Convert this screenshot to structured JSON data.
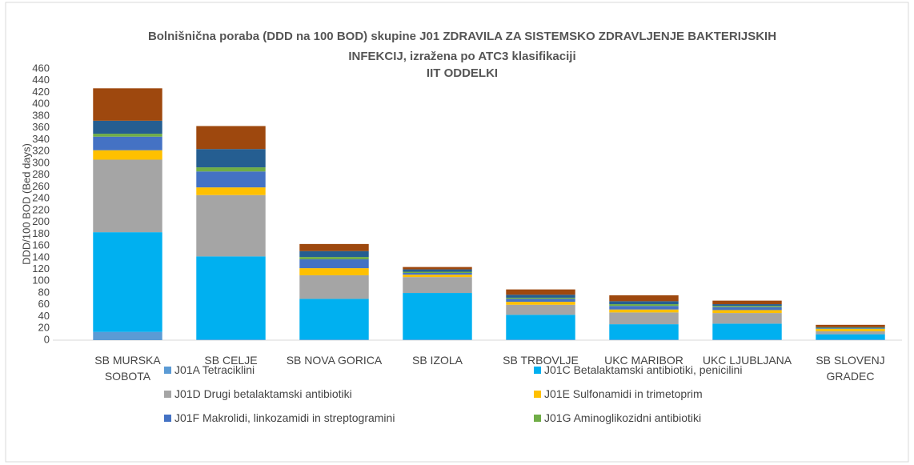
{
  "chart_data": {
    "type": "stacked_bar",
    "title": "Bolnišnična poraba (DDD na 100 BOD) skupine J01 ZDRAVILA ZA SISTEMSKO ZDRAVLJENJE BAKTERIJSKIH INFEKCIJ, izražena po ATC3 klasifikaciji",
    "subtitle": "IIT ODDELKI",
    "y_label": "DDD/100 BOD (Bed days)",
    "categories": [
      "SB MURSKA SOBOTA",
      "SB CELJE",
      "SB NOVA GORICA",
      "SB IZOLA",
      "SB TRBOVLJE",
      "UKC MARIBOR",
      "UKC LJUBLJANA",
      "SB SLOVENJ GRADEC"
    ],
    "series": [
      {
        "name": "J01A Tetraciklini",
        "color": "#5b9bd5",
        "values": [
          14,
          1,
          1,
          1,
          1,
          1,
          1,
          1
        ]
      },
      {
        "name": "J01C Betalaktamski antibiotiki, penicilini",
        "color": "#00b0f0",
        "values": [
          169,
          141,
          69,
          79,
          42,
          26,
          27,
          9
        ]
      },
      {
        "name": "J01D Drugi betalaktamski antibiotiki",
        "color": "#a5a5a5",
        "values": [
          123,
          104,
          40,
          27,
          17,
          20,
          18,
          5
        ]
      },
      {
        "name": "J01E Sulfonamidi in trimetoprim",
        "color": "#ffc000",
        "values": [
          16,
          13,
          12,
          4,
          5,
          5,
          5,
          4
        ]
      },
      {
        "name": "J01F Makrolidi, linkozamidi in streptogramini",
        "color": "#4472c4",
        "values": [
          23,
          27,
          15,
          3,
          5,
          6,
          5,
          1
        ]
      },
      {
        "name": "J01G Aminoglikozidni antibiotiki",
        "color": "#70ad47",
        "values": [
          5,
          7,
          4,
          2,
          2,
          3,
          2,
          1
        ]
      },
      {
        "color": "#255e91",
        "values": [
          22,
          31,
          10,
          4,
          5,
          5,
          3,
          1
        ]
      },
      {
        "color": "#9e480e",
        "values": [
          55,
          39,
          12,
          4,
          9,
          10,
          6,
          4
        ]
      }
    ],
    "ylim": [
      0,
      460
    ],
    "yticks": [
      0,
      20,
      40,
      60,
      80,
      100,
      120,
      140,
      160,
      180,
      200,
      220,
      240,
      260,
      280,
      300,
      320,
      340,
      360,
      380,
      400,
      420,
      440,
      460
    ],
    "grid": false
  }
}
